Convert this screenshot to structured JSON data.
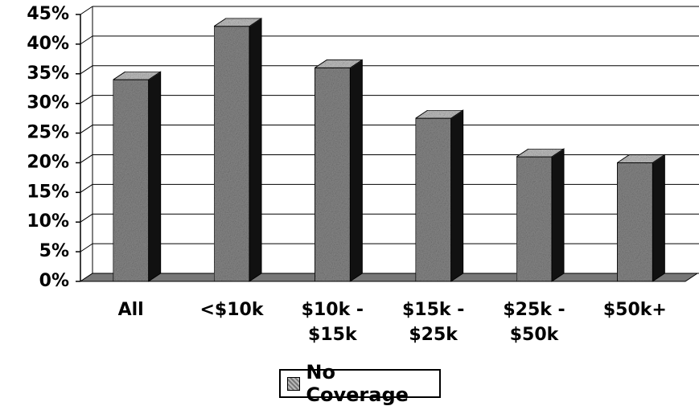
{
  "chart_data": {
    "type": "bar3d",
    "categories": [
      "All",
      "<$10k",
      "$10k -\n$15k",
      "$15k -\n$25k",
      "$25k -\n$50k",
      "$50k+"
    ],
    "series": [
      {
        "name": "No Coverage",
        "color": "#8a8a8a",
        "values": [
          34,
          43,
          36,
          27.5,
          21,
          20
        ]
      }
    ],
    "ylim": [
      0,
      45
    ],
    "yticks": [
      {
        "value": 0,
        "label": "0%"
      },
      {
        "value": 5,
        "label": "5%"
      },
      {
        "value": 10,
        "label": "10%"
      },
      {
        "value": 15,
        "label": "15%"
      },
      {
        "value": 20,
        "label": "20%"
      },
      {
        "value": 25,
        "label": "25%"
      },
      {
        "value": 30,
        "label": "30%"
      },
      {
        "value": 35,
        "label": "35%"
      },
      {
        "value": 40,
        "label": "40%"
      },
      {
        "value": 45,
        "label": "45%"
      }
    ],
    "grid": true
  }
}
